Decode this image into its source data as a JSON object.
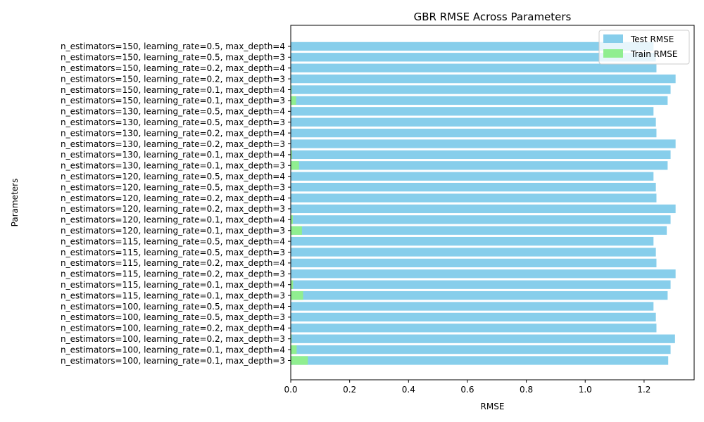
{
  "chart_data": {
    "type": "bar",
    "orientation": "horizontal",
    "title": "GBR RMSE Across Parameters",
    "xlabel": "RMSE",
    "ylabel": "Parameters",
    "xlim": [
      0,
      1.37
    ],
    "xticks": [
      0.0,
      0.2,
      0.4,
      0.6,
      0.8,
      1.0,
      1.2
    ],
    "xtick_labels": [
      "0.0",
      "0.2",
      "0.4",
      "0.6",
      "0.8",
      "1.0",
      "1.2"
    ],
    "grid": false,
    "legend_position": "top-right",
    "categories": [
      "n_estimators=100, learning_rate=0.1, max_depth=3",
      "n_estimators=100, learning_rate=0.1, max_depth=4",
      "n_estimators=100, learning_rate=0.2, max_depth=3",
      "n_estimators=100, learning_rate=0.2, max_depth=4",
      "n_estimators=100, learning_rate=0.5, max_depth=3",
      "n_estimators=100, learning_rate=0.5, max_depth=4",
      "n_estimators=115, learning_rate=0.1, max_depth=3",
      "n_estimators=115, learning_rate=0.1, max_depth=4",
      "n_estimators=115, learning_rate=0.2, max_depth=3",
      "n_estimators=115, learning_rate=0.2, max_depth=4",
      "n_estimators=115, learning_rate=0.5, max_depth=3",
      "n_estimators=115, learning_rate=0.5, max_depth=4",
      "n_estimators=120, learning_rate=0.1, max_depth=3",
      "n_estimators=120, learning_rate=0.1, max_depth=4",
      "n_estimators=120, learning_rate=0.2, max_depth=3",
      "n_estimators=120, learning_rate=0.2, max_depth=4",
      "n_estimators=120, learning_rate=0.5, max_depth=3",
      "n_estimators=120, learning_rate=0.5, max_depth=4",
      "n_estimators=130, learning_rate=0.1, max_depth=3",
      "n_estimators=130, learning_rate=0.1, max_depth=4",
      "n_estimators=130, learning_rate=0.2, max_depth=3",
      "n_estimators=130, learning_rate=0.2, max_depth=4",
      "n_estimators=130, learning_rate=0.5, max_depth=3",
      "n_estimators=130, learning_rate=0.5, max_depth=4",
      "n_estimators=150, learning_rate=0.1, max_depth=3",
      "n_estimators=150, learning_rate=0.1, max_depth=4",
      "n_estimators=150, learning_rate=0.2, max_depth=3",
      "n_estimators=150, learning_rate=0.2, max_depth=4",
      "n_estimators=150, learning_rate=0.5, max_depth=3",
      "n_estimators=150, learning_rate=0.5, max_depth=4"
    ],
    "series": [
      {
        "name": "Test RMSE",
        "color": "#87ceeb",
        "values": [
          1.282,
          1.29,
          1.305,
          1.242,
          1.24,
          1.232,
          1.28,
          1.29,
          1.307,
          1.242,
          1.24,
          1.232,
          1.277,
          1.29,
          1.307,
          1.242,
          1.24,
          1.232,
          1.28,
          1.29,
          1.307,
          1.242,
          1.24,
          1.232,
          1.28,
          1.29,
          1.307,
          1.242,
          1.24,
          1.232
        ]
      },
      {
        "name": "Train RMSE",
        "color": "#90ee90",
        "values": [
          0.058,
          0.02,
          0.003,
          0.0,
          0.0,
          0.0,
          0.042,
          0.008,
          0.0,
          0.0,
          0.0,
          0.0,
          0.038,
          0.007,
          0.0,
          0.0,
          0.0,
          0.0,
          0.028,
          0.004,
          0.0,
          0.0,
          0.0,
          0.0,
          0.018,
          0.003,
          0.0,
          0.0,
          0.0,
          0.0
        ]
      }
    ]
  }
}
